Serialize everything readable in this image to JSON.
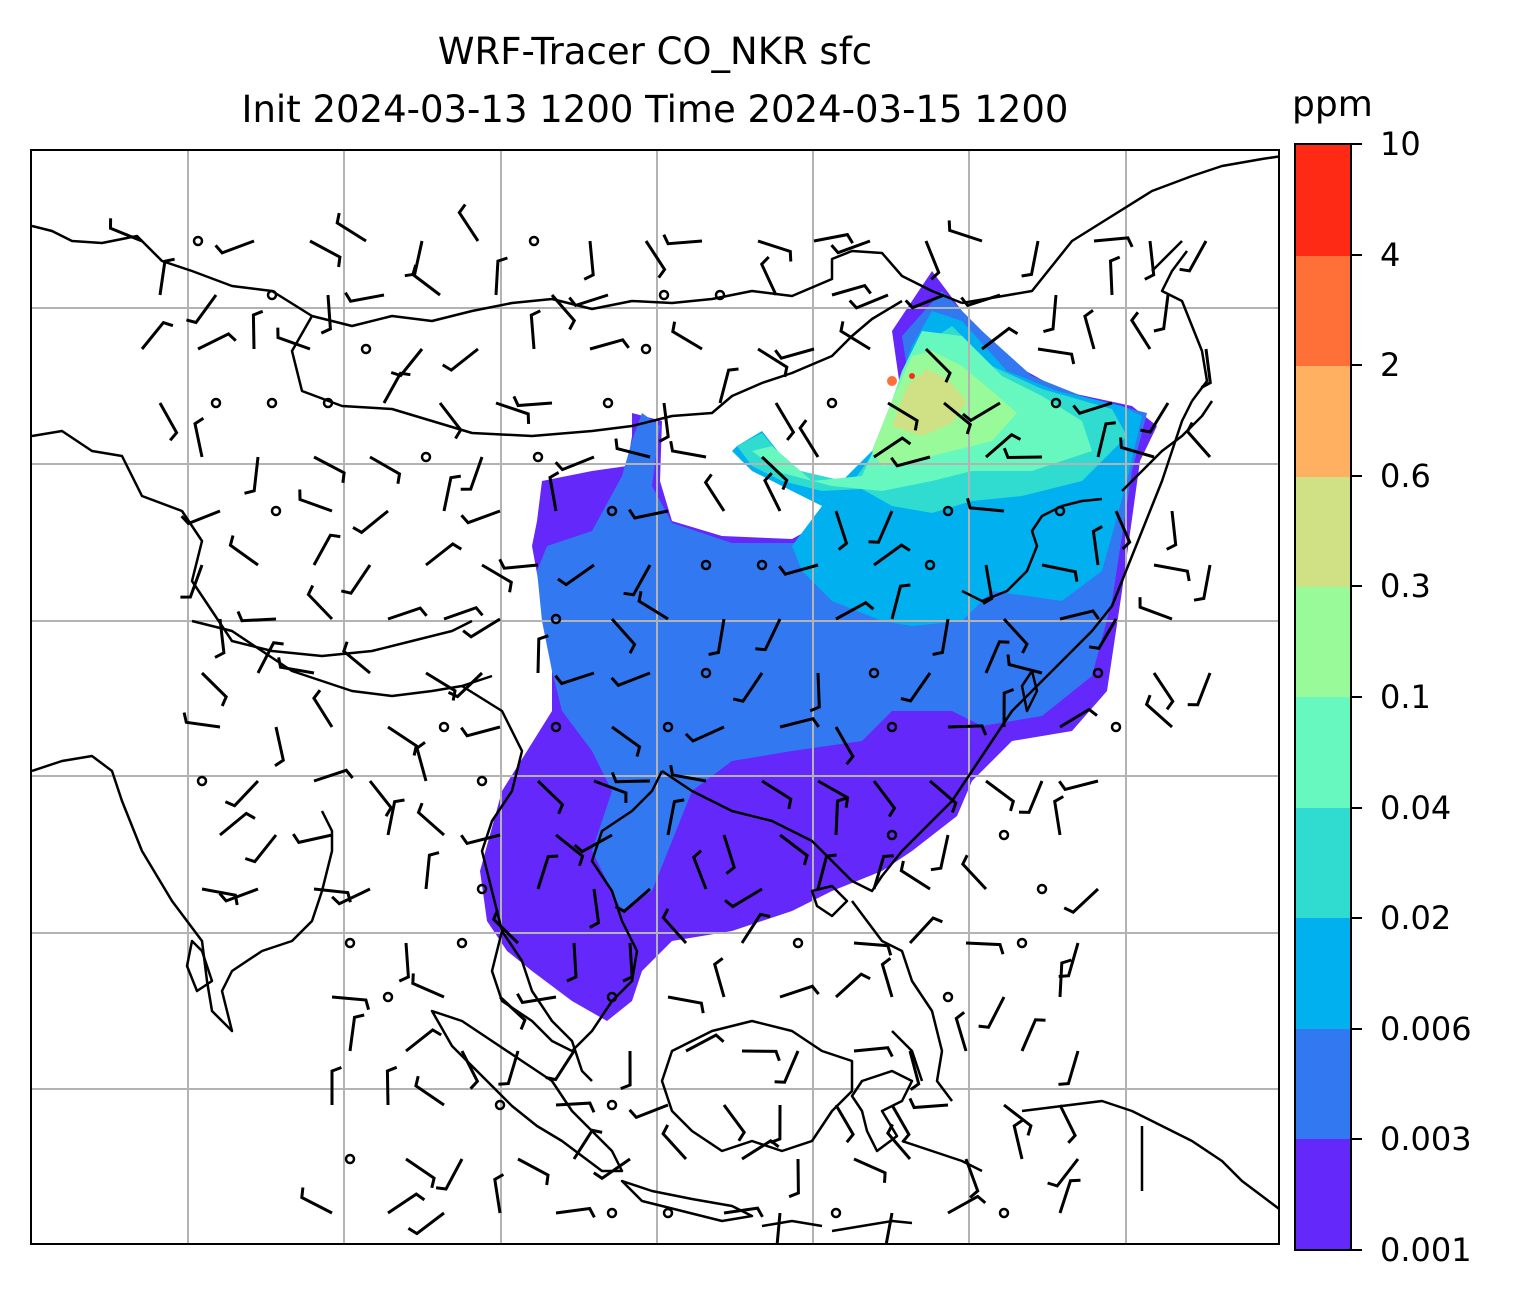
{
  "title": {
    "line1": "WRF-Tracer CO_NKR sfc",
    "line2": "Init 2024-03-13 1200 Time 2024-03-15 1200"
  },
  "colorbar": {
    "unit": "ppm",
    "tick_labels": [
      "0.001",
      "0.003",
      "0.006",
      "0.02",
      "0.04",
      "0.1",
      "0.3",
      "0.6",
      "2",
      "4",
      "10"
    ],
    "band_colors": [
      "#6428fa",
      "#3278f0",
      "#00b0ef",
      "#2fdccf",
      "#66f8be",
      "#98fa98",
      "#d0e084",
      "#ffb060",
      "#ff7038",
      "#ff2a16"
    ]
  },
  "map": {
    "gridlines": true,
    "coastline_color": "#000000",
    "gridline_color": "#b3b3b3",
    "wind_barb_color": "#000000"
  }
}
